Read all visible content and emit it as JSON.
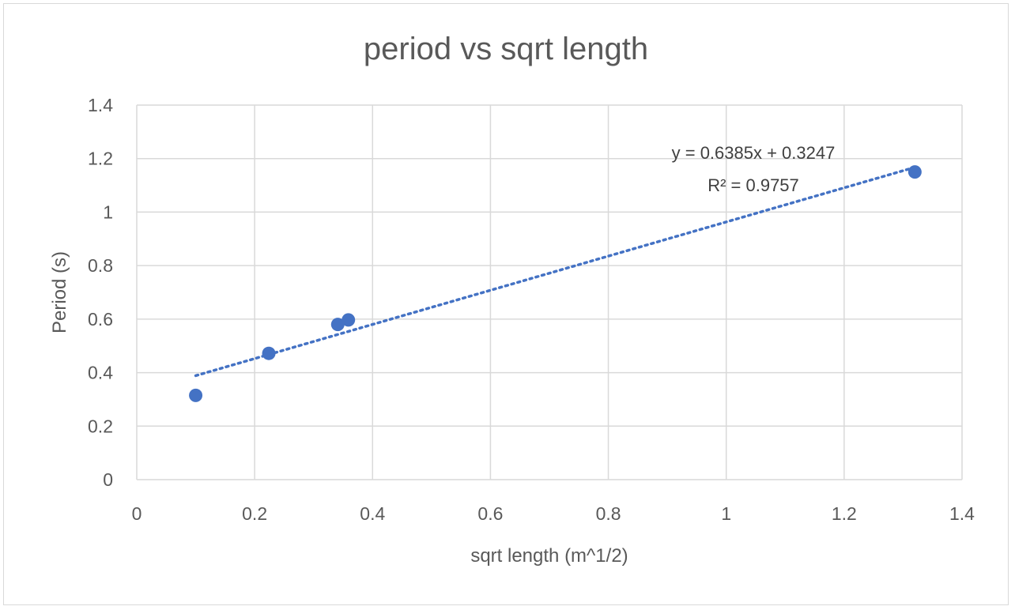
{
  "chart_data": {
    "type": "scatter",
    "title": "period vs sqrt length",
    "xlabel": "sqrt length  (m^1/2)",
    "ylabel": "Period (s)",
    "xlim": [
      0,
      1.4
    ],
    "ylim": [
      0,
      1.4
    ],
    "xticks": [
      "0",
      "0.2",
      "0.4",
      "0.6",
      "0.8",
      "1",
      "1.2",
      "1.4"
    ],
    "yticks": [
      "0",
      "0.2",
      "0.4",
      "0.6",
      "0.8",
      "1",
      "1.2",
      "1.4"
    ],
    "grid": true,
    "legend": "none",
    "series": [
      {
        "points": [
          {
            "x": 0.1,
            "y": 0.315
          },
          {
            "x": 0.224,
            "y": 0.472
          },
          {
            "x": 0.341,
            "y": 0.58
          },
          {
            "x": 0.359,
            "y": 0.597
          },
          {
            "x": 1.32,
            "y": 1.15
          }
        ],
        "color": "#4472C4"
      }
    ],
    "trendline": {
      "type": "linear",
      "slope": 0.6385,
      "intercept": 0.3247,
      "x_range": [
        0.1,
        1.32
      ],
      "style": "dotted",
      "color": "#4472C4",
      "equation_label": "y = 0.6385x + 0.3247",
      "r2_label": "R² = 0.9757"
    }
  }
}
